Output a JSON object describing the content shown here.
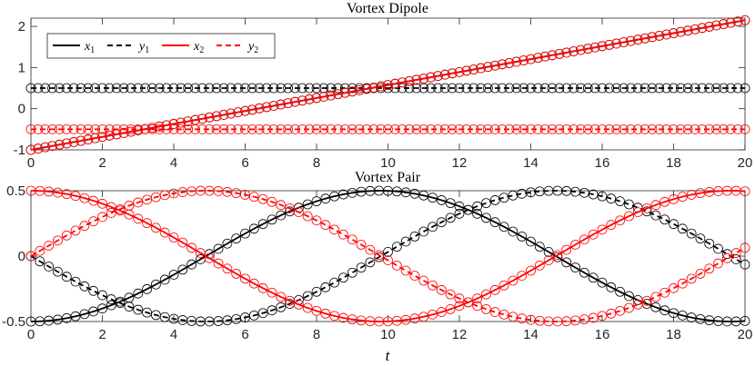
{
  "chart_data": [
    {
      "type": "line",
      "title": "Vortex Dipole",
      "xlabel": "",
      "ylabel": "",
      "xlim": [
        0,
        20
      ],
      "ylim": [
        -1,
        2.2
      ],
      "xticks": [
        "0",
        "2",
        "4",
        "6",
        "8",
        "10",
        "12",
        "14",
        "16",
        "18",
        "20"
      ],
      "yticks": [
        "-1",
        "0",
        "1",
        "2"
      ],
      "grid": false,
      "legend": {
        "position": "top-left",
        "entries": [
          "x1",
          "y1",
          "x2",
          "y2"
        ]
      },
      "series": [
        {
          "name": "x1",
          "color": "#000000",
          "dash": "solid",
          "kind": "linear",
          "start": -1,
          "end": 2.15
        },
        {
          "name": "y1",
          "color": "#000000",
          "dash": "dashed",
          "kind": "constant",
          "value": 0.5
        },
        {
          "name": "x2",
          "color": "#ff0000",
          "dash": "solid",
          "kind": "linear",
          "start": -1,
          "end": 2.15
        },
        {
          "name": "y2",
          "color": "#ff0000",
          "dash": "dashed",
          "kind": "constant",
          "value": -0.5
        }
      ],
      "markers": "open circles on every series",
      "marker_count": 101
    },
    {
      "type": "line",
      "title": "Vortex Pair",
      "xlabel": "t",
      "ylabel": "",
      "xlim": [
        0,
        20
      ],
      "ylim": [
        -0.5,
        0.5
      ],
      "xticks": [
        "0",
        "2",
        "4",
        "6",
        "8",
        "10",
        "12",
        "14",
        "16",
        "18",
        "20"
      ],
      "yticks": [
        "-0.5",
        "0",
        "0.5"
      ],
      "grid": false,
      "series": [
        {
          "name": "x1",
          "color": "#000000",
          "dash": "solid",
          "kind": "cos",
          "amplitude": -0.5,
          "period": 19.6,
          "phase": 0
        },
        {
          "name": "y1",
          "color": "#000000",
          "dash": "dashed",
          "kind": "sin",
          "amplitude": -0.5,
          "period": 19.6,
          "phase": 0
        },
        {
          "name": "x2",
          "color": "#ff0000",
          "dash": "solid",
          "kind": "cos",
          "amplitude": 0.5,
          "period": 19.6,
          "phase": 0
        },
        {
          "name": "y2",
          "color": "#ff0000",
          "dash": "dashed",
          "kind": "sin",
          "amplitude": 0.5,
          "period": 19.6,
          "phase": 0
        }
      ],
      "markers": "open circles on every series",
      "marker_count": 81
    }
  ]
}
